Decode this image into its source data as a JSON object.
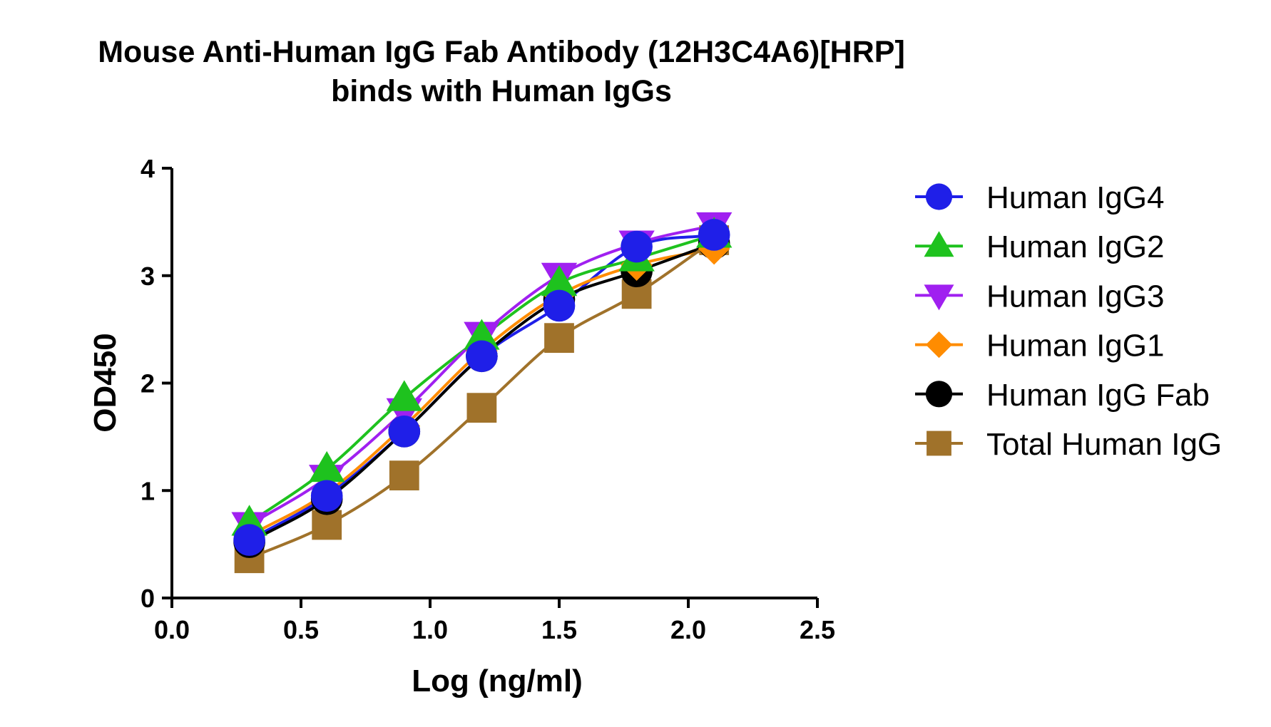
{
  "chart_data": {
    "type": "line",
    "title": "Mouse Anti-Human IgG Fab Antibody (12H3C4A6)[HRP]",
    "subtitle": "binds with Human IgGs",
    "xlabel": "Log (ng/ml)",
    "ylabel": "OD450",
    "xlim": [
      0,
      2.5
    ],
    "ylim": [
      0,
      4
    ],
    "xticks": [
      "0.0",
      "0.5",
      "1.0",
      "1.5",
      "2.0",
      "2.5"
    ],
    "yticks": [
      "0",
      "1",
      "2",
      "3",
      "4"
    ],
    "grid": false,
    "legend_position": "right",
    "x": [
      0.3,
      0.6,
      0.9,
      1.2,
      1.5,
      1.8,
      2.1
    ],
    "series": [
      {
        "name": "Human IgG4",
        "color": "#1f1fe8",
        "marker": "circle",
        "values": [
          0.54,
          0.95,
          1.55,
          2.25,
          2.72,
          3.27,
          3.38
        ]
      },
      {
        "name": "Human IgG2",
        "color": "#1ec21e",
        "marker": "triangle-up",
        "values": [
          0.7,
          1.2,
          1.86,
          2.43,
          2.93,
          3.16,
          3.38
        ]
      },
      {
        "name": "Human IgG3",
        "color": "#a020f0",
        "marker": "triangle-down",
        "values": [
          0.68,
          1.12,
          1.74,
          2.45,
          3.0,
          3.3,
          3.47
        ]
      },
      {
        "name": "Human IgG1",
        "color": "#ff8c00",
        "marker": "diamond",
        "values": [
          0.58,
          0.98,
          1.6,
          2.3,
          2.82,
          3.1,
          3.25
        ]
      },
      {
        "name": "Human IgG Fab",
        "color": "#000000",
        "marker": "circle",
        "values": [
          0.52,
          0.92,
          1.55,
          2.25,
          2.78,
          3.04,
          3.3
        ]
      },
      {
        "name": "Total Human IgG",
        "color": "#a0722a",
        "marker": "square",
        "values": [
          0.37,
          0.68,
          1.14,
          1.77,
          2.42,
          2.83,
          3.33
        ]
      }
    ]
  }
}
